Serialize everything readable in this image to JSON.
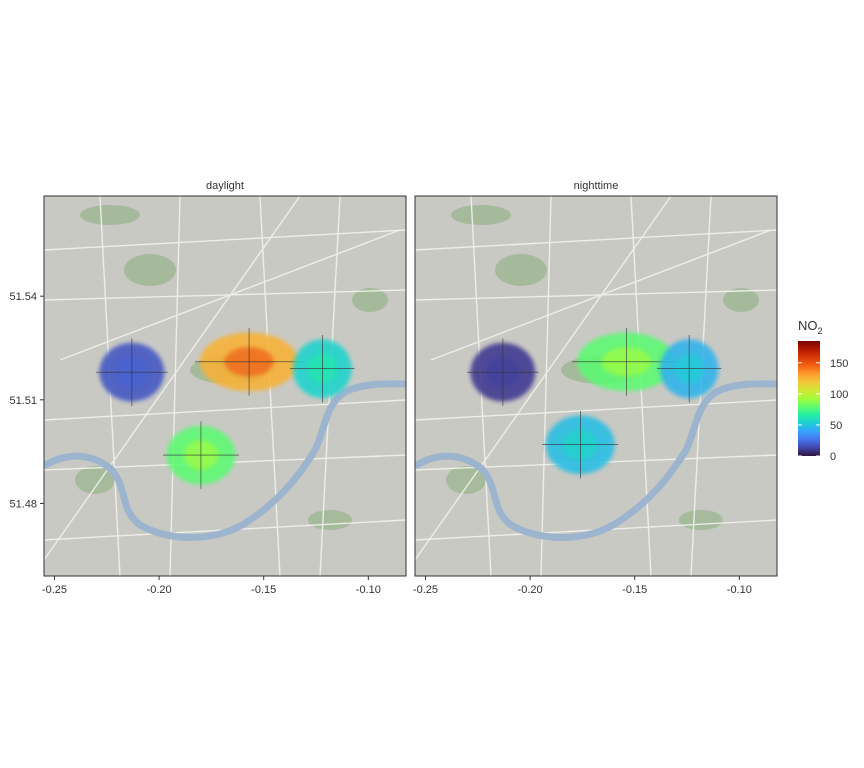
{
  "chart_data": {
    "type": "heatmap",
    "title": "",
    "xlabel": "",
    "ylabel": "",
    "xlim": [
      -0.255,
      -0.082
    ],
    "ylim": [
      51.459,
      51.569
    ],
    "x_ticks": [
      -0.25,
      -0.2,
      -0.15,
      -0.1
    ],
    "x_tick_labels": [
      "-0.25",
      "-0.20",
      "-0.15",
      "-0.10"
    ],
    "y_ticks": [
      51.48,
      51.51,
      51.54
    ],
    "y_tick_labels": [
      "51.48",
      "51.51",
      "51.54"
    ],
    "basemap": "street map (London)",
    "panels": [
      {
        "name": "daylight",
        "blobs": [
          {
            "center": [
              -0.213,
              51.518
            ],
            "radius": [
              0.0155,
              0.0085
            ],
            "value": 18
          },
          {
            "center": [
              -0.157,
              51.521
            ],
            "radius": [
              0.0235,
              0.0085
            ],
            "value": 125
          },
          {
            "center": [
              -0.122,
              51.519
            ],
            "radius": [
              0.014,
              0.0085
            ],
            "value": 55
          },
          {
            "center": [
              -0.18,
              51.494
            ],
            "radius": [
              0.0165,
              0.0085
            ],
            "value": 78
          }
        ]
      },
      {
        "name": "nighttime",
        "blobs": [
          {
            "center": [
              -0.213,
              51.518
            ],
            "radius": [
              0.0155,
              0.0085
            ],
            "value": 10
          },
          {
            "center": [
              -0.154,
              51.521
            ],
            "radius": [
              0.0235,
              0.0085
            ],
            "value": 78
          },
          {
            "center": [
              -0.124,
              51.519
            ],
            "radius": [
              0.014,
              0.0085
            ],
            "value": 45
          },
          {
            "center": [
              -0.176,
              51.497
            ],
            "radius": [
              0.0165,
              0.0085
            ],
            "value": 48
          }
        ]
      }
    ],
    "legend": {
      "title": "NO",
      "title_subscript": "2",
      "breaks": [
        0,
        50,
        100,
        150
      ],
      "break_labels": [
        "0",
        "50",
        "100",
        "150"
      ],
      "limits": [
        0,
        185
      ],
      "palette": [
        "#30123b",
        "#4145ab",
        "#4675ed",
        "#39a2fc",
        "#1bcfd4",
        "#24eca6",
        "#61fc6c",
        "#a4fc3b",
        "#d1e834",
        "#f3c63a",
        "#fe9b2d",
        "#f36315",
        "#d93806",
        "#b11901",
        "#7a0402"
      ],
      "position": "right"
    }
  }
}
